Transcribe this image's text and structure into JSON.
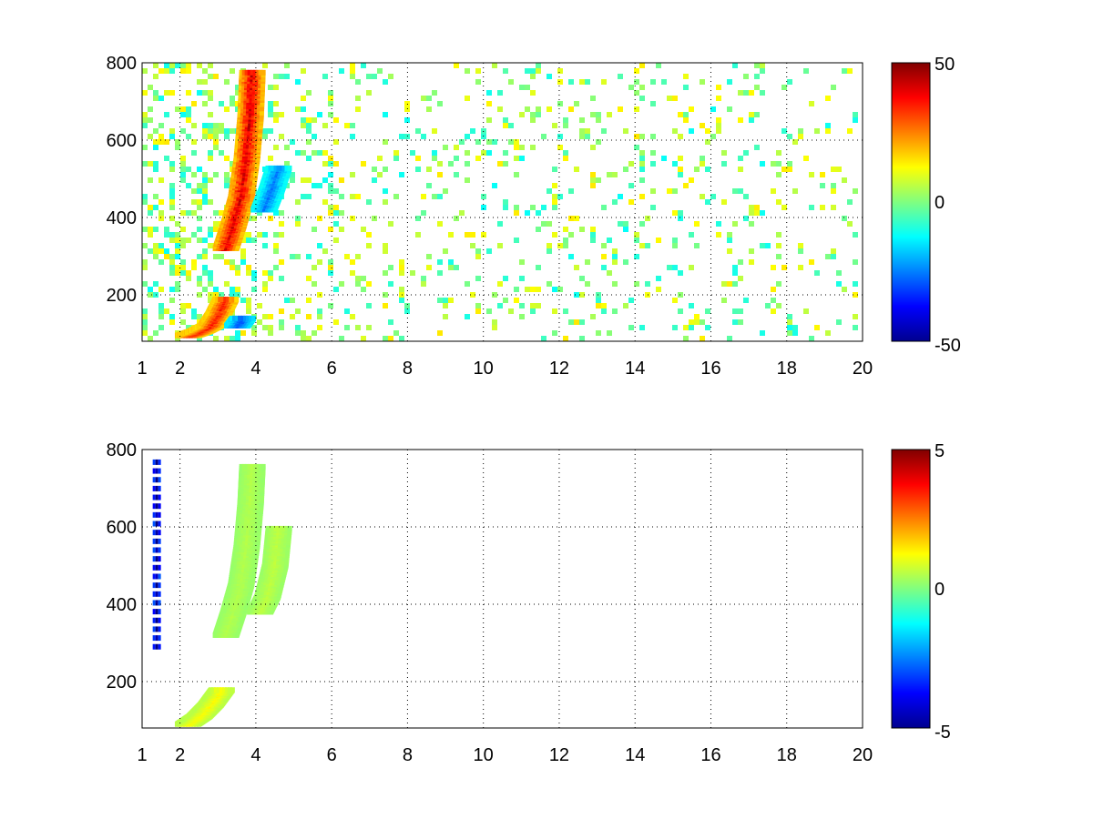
{
  "chart_data": [
    {
      "type": "heatmap",
      "title": "",
      "xlabel": "",
      "ylabel": "",
      "xlim": [
        1,
        20
      ],
      "ylim": [
        80,
        800
      ],
      "x_ticks": [
        "1",
        "2",
        "4",
        "6",
        "8",
        "10",
        "12",
        "14",
        "16",
        "18",
        "20"
      ],
      "y_ticks": [
        "200",
        "400",
        "600",
        "800"
      ],
      "grid": true,
      "colormap": "jet",
      "colorbar": {
        "min": -50,
        "max": 50,
        "ticks": [
          "50",
          "0",
          "-50"
        ]
      },
      "features": [
        {
          "name": "curved band",
          "x": [
            3.2,
            3.4,
            3.6,
            3.75,
            3.85,
            3.9
          ],
          "y": [
            320,
            380,
            450,
            550,
            660,
            780
          ],
          "value": 40
        },
        {
          "name": "lower band",
          "x": [
            2.2,
            2.5,
            2.8,
            3.0,
            3.2
          ],
          "y": [
            95,
            105,
            120,
            150,
            190
          ],
          "value": 35
        },
        {
          "name": "negative patch",
          "x": [
            4.2,
            4.4,
            4.6
          ],
          "y": [
            420,
            470,
            530
          ],
          "value": -25
        },
        {
          "name": "negative patch low",
          "x": [
            3.5,
            3.65
          ],
          "y": [
            120,
            140
          ],
          "value": -30
        }
      ],
      "noise": {
        "x_range": [
          1,
          20
        ],
        "value_range": [
          -12,
          15
        ]
      }
    },
    {
      "type": "heatmap",
      "title": "",
      "xlabel": "",
      "ylabel": "",
      "xlim": [
        1,
        20
      ],
      "ylim": [
        80,
        800
      ],
      "x_ticks": [
        "1",
        "2",
        "4",
        "6",
        "8",
        "10",
        "12",
        "14",
        "16",
        "18",
        "20"
      ],
      "y_ticks": [
        "200",
        "400",
        "600",
        "800"
      ],
      "grid": true,
      "colormap": "jet",
      "colorbar": {
        "min": -5,
        "max": 5,
        "ticks": [
          "5",
          "0",
          "-5"
        ]
      },
      "features": [
        {
          "name": "curved band",
          "x": [
            3.2,
            3.4,
            3.6,
            3.75,
            3.85,
            3.9
          ],
          "y": [
            320,
            380,
            450,
            550,
            660,
            760
          ],
          "value": 0.5
        },
        {
          "name": "side band",
          "x": [
            4.1,
            4.3,
            4.5,
            4.6
          ],
          "y": [
            380,
            420,
            500,
            600
          ],
          "value": 0.6
        },
        {
          "name": "lower band",
          "x": [
            2.2,
            2.5,
            2.8,
            3.1
          ],
          "y": [
            90,
            110,
            140,
            180
          ],
          "value": 1.2
        },
        {
          "name": "vertical line",
          "x": [
            1.4,
            1.4
          ],
          "y": [
            290,
            790
          ],
          "value": -5
        }
      ]
    }
  ]
}
